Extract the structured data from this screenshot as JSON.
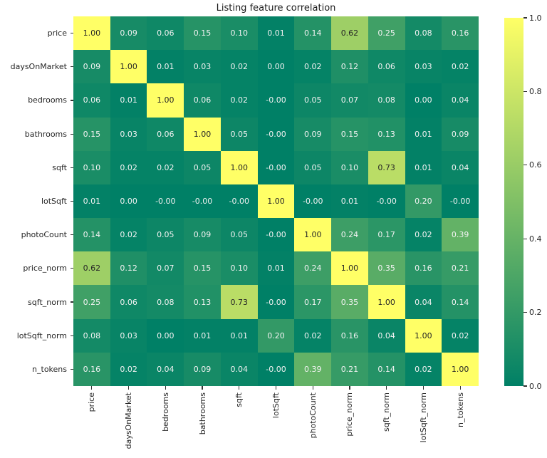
{
  "title": "Listing feature correlation",
  "chart_data": {
    "type": "heatmap",
    "title": "Listing feature correlation",
    "categories": [
      "price",
      "daysOnMarket",
      "bedrooms",
      "bathrooms",
      "sqft",
      "lotSqft",
      "photoCount",
      "price_norm",
      "sqft_norm",
      "lotSqft_norm",
      "n_tokens"
    ],
    "matrix": [
      [
        "1.00",
        "0.09",
        "0.06",
        "0.15",
        "0.10",
        "0.01",
        "0.14",
        "0.62",
        "0.25",
        "0.08",
        "0.16"
      ],
      [
        "0.09",
        "1.00",
        "0.01",
        "0.03",
        "0.02",
        "0.00",
        "0.02",
        "0.12",
        "0.06",
        "0.03",
        "0.02"
      ],
      [
        "0.06",
        "0.01",
        "1.00",
        "0.06",
        "0.02",
        "-0.00",
        "0.05",
        "0.07",
        "0.08",
        "0.00",
        "0.04"
      ],
      [
        "0.15",
        "0.03",
        "0.06",
        "1.00",
        "0.05",
        "-0.00",
        "0.09",
        "0.15",
        "0.13",
        "0.01",
        "0.09"
      ],
      [
        "0.10",
        "0.02",
        "0.02",
        "0.05",
        "1.00",
        "-0.00",
        "0.05",
        "0.10",
        "0.73",
        "0.01",
        "0.04"
      ],
      [
        "0.01",
        "0.00",
        "-0.00",
        "-0.00",
        "-0.00",
        "1.00",
        "-0.00",
        "0.01",
        "-0.00",
        "0.20",
        "-0.00"
      ],
      [
        "0.14",
        "0.02",
        "0.05",
        "0.09",
        "0.05",
        "-0.00",
        "1.00",
        "0.24",
        "0.17",
        "0.02",
        "0.39"
      ],
      [
        "0.62",
        "0.12",
        "0.07",
        "0.15",
        "0.10",
        "0.01",
        "0.24",
        "1.00",
        "0.35",
        "0.16",
        "0.21"
      ],
      [
        "0.25",
        "0.06",
        "0.08",
        "0.13",
        "0.73",
        "-0.00",
        "0.17",
        "0.35",
        "1.00",
        "0.04",
        "0.14"
      ],
      [
        "0.08",
        "0.03",
        "0.00",
        "0.01",
        "0.01",
        "0.20",
        "0.02",
        "0.16",
        "0.04",
        "1.00",
        "0.02"
      ],
      [
        "0.16",
        "0.02",
        "0.04",
        "0.09",
        "0.04",
        "-0.00",
        "0.39",
        "0.21",
        "0.14",
        "0.02",
        "1.00"
      ]
    ],
    "vmin": 0.0,
    "vmax": 1.0,
    "colormap": "summer",
    "color_low": "#008066",
    "color_high": "#ffff66",
    "annot_text_dark": "#262626",
    "annot_text_light": "#f2f2f2",
    "colorbar_ticks": [
      "1.0",
      "0.8",
      "0.6",
      "0.4",
      "0.2",
      "0.0"
    ],
    "colorbar_position": "right",
    "grid_lines": false
  }
}
